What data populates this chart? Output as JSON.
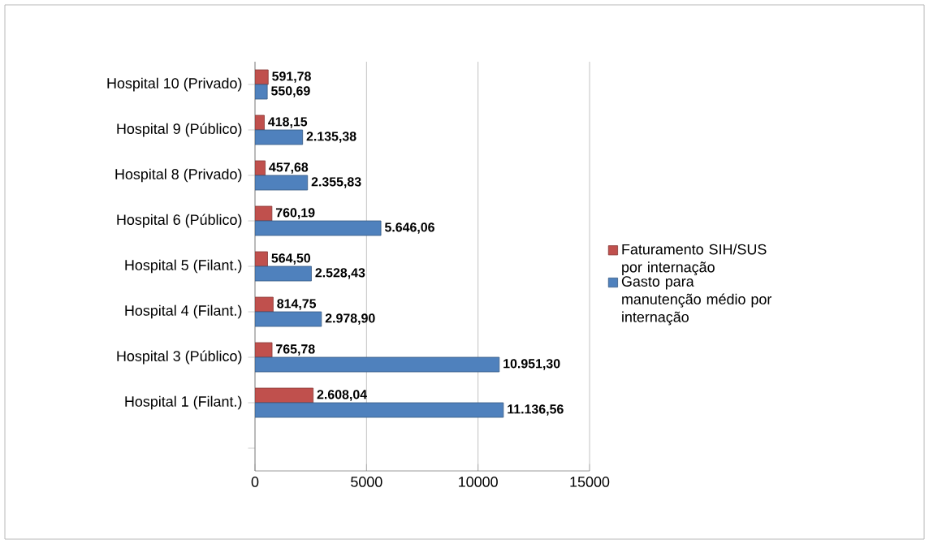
{
  "chart_data": {
    "type": "bar",
    "orientation": "horizontal",
    "categories": [
      "Hospital 10 (Privado)",
      "Hospital 9 (Público)",
      "Hospital 8 (Privado)",
      "Hospital 6 (Público)",
      "Hospital 5 (Filant.)",
      "Hospital 4 (Filant.)",
      "Hospital 3 (Público)",
      "Hospital 1 (Filant.)",
      null
    ],
    "series": [
      {
        "name": "Faturamento SIH/SUS por internação",
        "color": "#c0504d",
        "values": [
          591.78,
          418.15,
          457.68,
          760.19,
          564.5,
          814.75,
          765.78,
          2608.04,
          null
        ],
        "value_labels": [
          "591,78",
          "418,15",
          "457,68",
          "760,19",
          "564,50",
          "814,75",
          "765,78",
          "2.608,04",
          null
        ]
      },
      {
        "name": "Gasto para manutenção médio por internação",
        "color": "#4f81bd",
        "values": [
          550.69,
          2135.38,
          2355.83,
          5646.06,
          2528.43,
          2978.9,
          10951.3,
          11136.56,
          null
        ],
        "value_labels": [
          "550,69",
          "2.135,38",
          "2.355,83",
          "5.646,06",
          "2.528,43",
          "2.978,90",
          "10.951,30",
          "11.136,56",
          null
        ]
      }
    ],
    "xlim": [
      0,
      15000
    ],
    "xticks": [
      0,
      5000,
      10000,
      15000
    ],
    "grid": "x",
    "legend": "right"
  }
}
